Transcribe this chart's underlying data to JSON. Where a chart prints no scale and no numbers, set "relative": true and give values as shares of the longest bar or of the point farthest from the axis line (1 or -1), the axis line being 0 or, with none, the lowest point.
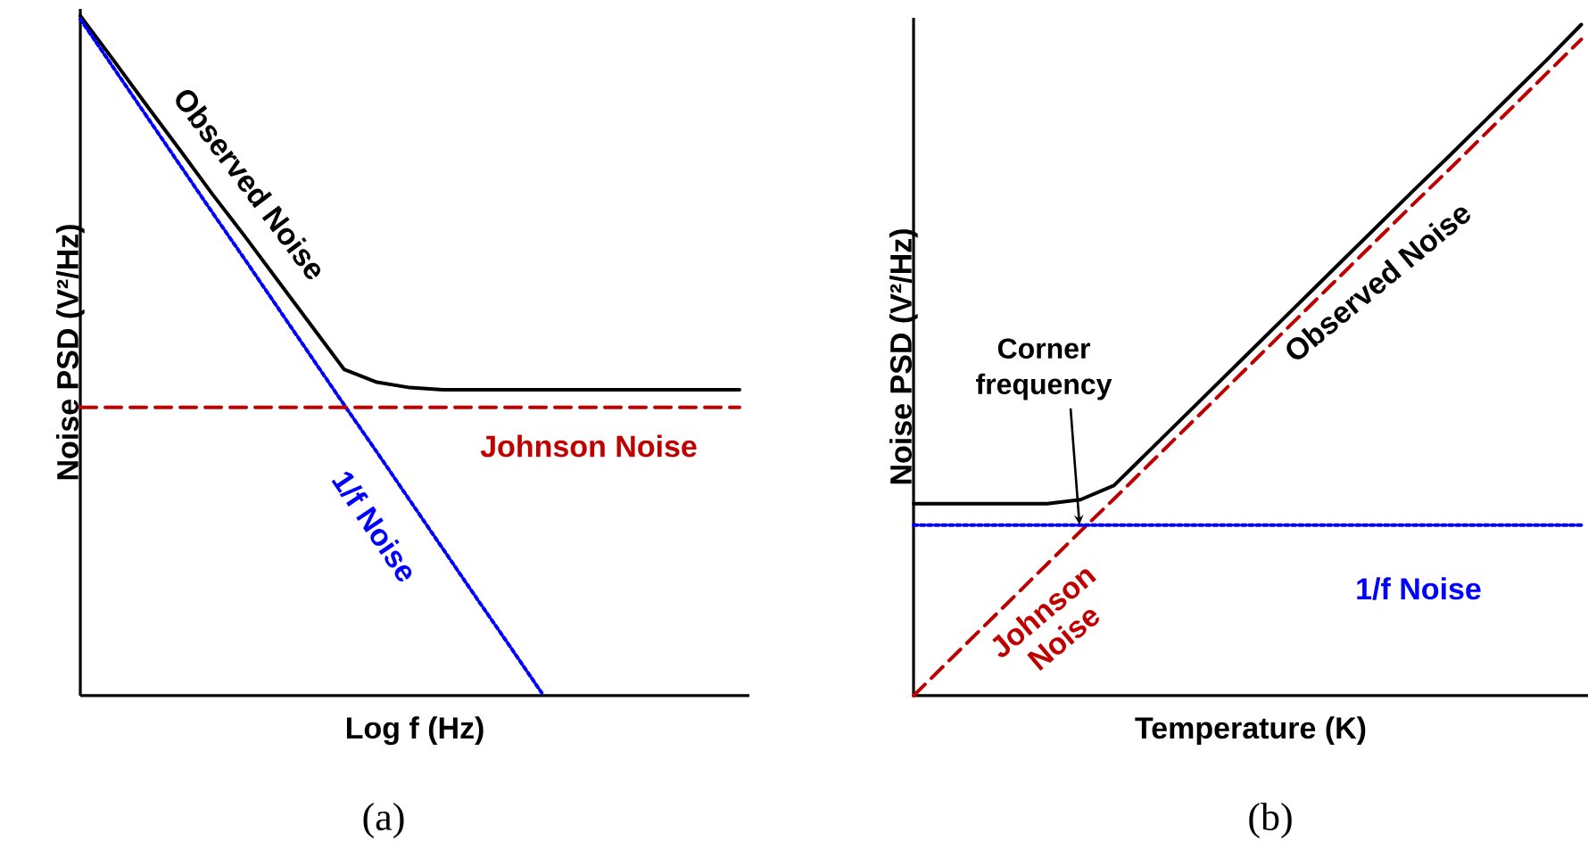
{
  "chart_data": [
    {
      "type": "line",
      "relative": true,
      "xlabel": "Log f (Hz)",
      "ylabel": "Noise PSD (V²/Hz)",
      "categories": [
        null,
        null,
        null,
        null,
        null,
        null,
        null,
        null,
        null,
        null,
        null,
        null,
        null,
        null,
        null,
        null,
        null,
        null,
        null,
        null,
        null
      ],
      "series": [
        {
          "name": "Observed Noise",
          "color": "#000000",
          "line_style": "solid",
          "values": [
            1.0,
            0.935,
            0.869,
            0.804,
            0.738,
            0.675,
            0.61,
            0.545,
            0.48,
            0.461,
            0.453,
            0.45,
            0.45,
            0.45,
            0.45,
            0.45,
            0.45,
            0.45,
            0.45,
            0.45,
            0.45
          ]
        },
        {
          "name": "1/f Noise",
          "color": "#0000ff",
          "line_style": "dotted",
          "values": [
            0.995,
            0.924,
            0.853,
            0.782,
            0.711,
            0.641,
            0.57,
            0.499,
            0.428,
            0.358,
            0.287,
            0.216,
            0.145,
            0.075,
            0.004,
            null,
            null,
            null,
            null,
            null,
            null
          ]
        },
        {
          "name": "Johnson Noise",
          "color": "#c00000",
          "line_style": "dashed",
          "values": [
            0.424,
            0.424,
            0.424,
            0.424,
            0.424,
            0.424,
            0.424,
            0.424,
            0.424,
            0.424,
            0.424,
            0.424,
            0.424,
            0.424,
            0.424,
            0.424,
            0.424,
            0.424,
            0.424,
            0.424,
            0.424
          ]
        }
      ],
      "annotations": [
        "(a)"
      ]
    },
    {
      "type": "line",
      "relative": true,
      "xlabel": "Temperature (K)",
      "ylabel": "Noise PSD (V²/Hz)",
      "categories": [
        null,
        null,
        null,
        null,
        null,
        null,
        null,
        null,
        null,
        null,
        null,
        null,
        null,
        null,
        null,
        null,
        null,
        null,
        null,
        null,
        null
      ],
      "series": [
        {
          "name": "Observed Noise",
          "color": "#000000",
          "line_style": "solid",
          "values": [
            0.286,
            0.286,
            0.286,
            0.286,
            0.286,
            0.292,
            0.313,
            0.362,
            0.411,
            0.46,
            0.509,
            0.558,
            0.607,
            0.656,
            0.705,
            0.754,
            0.802,
            0.851,
            0.9,
            0.949,
            1.0
          ]
        },
        {
          "name": "Johnson Noise",
          "color": "#c00000",
          "line_style": "dashed",
          "values": [
            0.0,
            0.049,
            0.098,
            0.147,
            0.196,
            0.245,
            0.293,
            0.342,
            0.391,
            0.44,
            0.489,
            0.538,
            0.587,
            0.636,
            0.685,
            0.734,
            0.782,
            0.831,
            0.88,
            0.929,
            0.978
          ]
        },
        {
          "name": "1/f Noise",
          "color": "#0000ff",
          "line_style": "dotted",
          "values": [
            0.254,
            0.254,
            0.254,
            0.254,
            0.254,
            0.254,
            0.254,
            0.254,
            0.254,
            0.254,
            0.254,
            0.254,
            0.254,
            0.254,
            0.254,
            0.254,
            0.254,
            0.254,
            0.254,
            0.254,
            0.254
          ]
        }
      ],
      "annotations": [
        "Corner frequency",
        "(b)"
      ]
    }
  ]
}
